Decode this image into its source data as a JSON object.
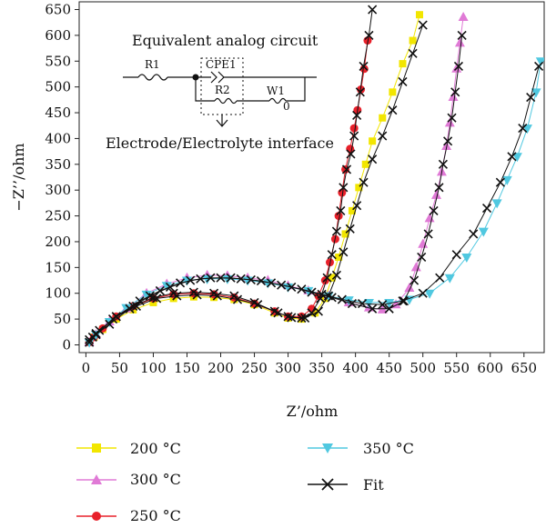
{
  "chart_data": {
    "type": "scatter",
    "title": "",
    "xlabel": "Z’/ohm",
    "ylabel": "−Z’’/ohm",
    "xlim": [
      -10,
      680
    ],
    "ylim": [
      -15,
      665
    ],
    "xticks": [
      0,
      50,
      100,
      150,
      200,
      250,
      300,
      350,
      400,
      450,
      500,
      550,
      600,
      650
    ],
    "yticks": [
      0,
      50,
      100,
      150,
      200,
      250,
      300,
      350,
      400,
      450,
      500,
      550,
      600,
      650
    ],
    "grid": false,
    "legend_position": "below",
    "inset": {
      "title": "Equivalent analog circuit",
      "caption": "Electrode/Electrolyte interface",
      "labels": [
        "R1",
        "CPE1",
        "R2",
        "W1",
        "0"
      ]
    },
    "series": [
      {
        "name": "200 °C",
        "color": "#f2e600",
        "marker": "square",
        "points": [
          [
            5,
            5
          ],
          [
            12,
            15
          ],
          [
            25,
            30
          ],
          [
            45,
            50
          ],
          [
            70,
            68
          ],
          [
            100,
            82
          ],
          [
            130,
            90
          ],
          [
            160,
            93
          ],
          [
            190,
            92
          ],
          [
            220,
            88
          ],
          [
            250,
            78
          ],
          [
            280,
            62
          ],
          [
            300,
            52
          ],
          [
            320,
            50
          ],
          [
            340,
            62
          ],
          [
            355,
            90
          ],
          [
            365,
            130
          ],
          [
            375,
            170
          ],
          [
            385,
            215
          ],
          [
            395,
            260
          ],
          [
            405,
            305
          ],
          [
            415,
            350
          ],
          [
            425,
            395
          ],
          [
            440,
            440
          ],
          [
            455,
            490
          ],
          [
            470,
            545
          ],
          [
            485,
            590
          ],
          [
            495,
            640
          ]
        ]
      },
      {
        "name": "300 °C",
        "color": "#e07ad6",
        "marker": "triangle",
        "points": [
          [
            5,
            5
          ],
          [
            15,
            20
          ],
          [
            35,
            45
          ],
          [
            60,
            70
          ],
          [
            90,
            100
          ],
          [
            120,
            118
          ],
          [
            150,
            130
          ],
          [
            180,
            135
          ],
          [
            210,
            134
          ],
          [
            240,
            130
          ],
          [
            270,
            125
          ],
          [
            300,
            115
          ],
          [
            330,
            105
          ],
          [
            360,
            95
          ],
          [
            390,
            82
          ],
          [
            420,
            72
          ],
          [
            440,
            68
          ],
          [
            460,
            78
          ],
          [
            480,
            110
          ],
          [
            490,
            150
          ],
          [
            500,
            195
          ],
          [
            510,
            245
          ],
          [
            520,
            290
          ],
          [
            528,
            335
          ],
          [
            535,
            385
          ],
          [
            540,
            430
          ],
          [
            545,
            480
          ],
          [
            550,
            535
          ],
          [
            555,
            585
          ],
          [
            560,
            635
          ]
        ]
      },
      {
        "name": "250 °C",
        "color": "#e8202a",
        "marker": "circle",
        "points": [
          [
            5,
            5
          ],
          [
            12,
            15
          ],
          [
            25,
            32
          ],
          [
            45,
            55
          ],
          [
            70,
            75
          ],
          [
            100,
            90
          ],
          [
            130,
            98
          ],
          [
            160,
            100
          ],
          [
            190,
            98
          ],
          [
            220,
            92
          ],
          [
            250,
            80
          ],
          [
            280,
            65
          ],
          [
            300,
            55
          ],
          [
            320,
            55
          ],
          [
            335,
            70
          ],
          [
            345,
            95
          ],
          [
            355,
            125
          ],
          [
            362,
            160
          ],
          [
            370,
            205
          ],
          [
            375,
            250
          ],
          [
            380,
            295
          ],
          [
            385,
            340
          ],
          [
            392,
            380
          ],
          [
            398,
            420
          ],
          [
            403,
            455
          ],
          [
            408,
            495
          ],
          [
            413,
            535
          ],
          [
            418,
            590
          ]
        ]
      },
      {
        "name": "350 °C",
        "color": "#50c8e0",
        "marker": "triangle-down",
        "points": [
          [
            5,
            5
          ],
          [
            15,
            20
          ],
          [
            35,
            45
          ],
          [
            60,
            72
          ],
          [
            90,
            98
          ],
          [
            120,
            115
          ],
          [
            150,
            125
          ],
          [
            180,
            128
          ],
          [
            210,
            128
          ],
          [
            240,
            125
          ],
          [
            270,
            120
          ],
          [
            300,
            112
          ],
          [
            330,
            105
          ],
          [
            360,
            95
          ],
          [
            390,
            87
          ],
          [
            420,
            82
          ],
          [
            450,
            82
          ],
          [
            480,
            88
          ],
          [
            510,
            100
          ],
          [
            540,
            130
          ],
          [
            565,
            170
          ],
          [
            590,
            220
          ],
          [
            610,
            275
          ],
          [
            625,
            320
          ],
          [
            640,
            365
          ],
          [
            655,
            420
          ],
          [
            668,
            490
          ],
          [
            675,
            550
          ]
        ]
      },
      {
        "name": "Fit",
        "color": "#111111",
        "marker": "x",
        "points": [
          [
            5,
            5
          ],
          [
            15,
            20
          ],
          [
            40,
            50
          ],
          [
            70,
            75
          ],
          [
            100,
            92
          ],
          [
            130,
            100
          ],
          [
            160,
            102
          ],
          [
            190,
            100
          ],
          [
            220,
            95
          ],
          [
            250,
            82
          ],
          [
            280,
            65
          ],
          [
            300,
            55
          ],
          [
            320,
            52
          ],
          [
            335,
            62
          ],
          [
            348,
            90
          ],
          [
            358,
            130
          ],
          [
            365,
            175
          ],
          [
            372,
            220
          ],
          [
            378,
            260
          ],
          [
            382,
            305
          ],
          [
            387,
            340
          ],
          [
            393,
            370
          ],
          [
            398,
            405
          ],
          [
            402,
            445
          ],
          [
            407,
            490
          ],
          [
            412,
            540
          ],
          [
            420,
            600
          ],
          [
            425,
            650
          ]
        ]
      },
      {
        "name": "",
        "color": "#111111",
        "marker": "x",
        "legend": false,
        "points": [
          [
            15,
            22
          ],
          [
            45,
            55
          ],
          [
            80,
            85
          ],
          [
            110,
            105
          ],
          [
            140,
            120
          ],
          [
            170,
            128
          ],
          [
            200,
            130
          ],
          [
            230,
            128
          ],
          [
            260,
            124
          ],
          [
            290,
            116
          ],
          [
            320,
            108
          ],
          [
            350,
            98
          ],
          [
            380,
            88
          ],
          [
            410,
            80
          ],
          [
            440,
            78
          ],
          [
            470,
            85
          ],
          [
            500,
            100
          ],
          [
            525,
            130
          ],
          [
            550,
            175
          ],
          [
            575,
            215
          ],
          [
            595,
            265
          ],
          [
            615,
            315
          ],
          [
            632,
            365
          ],
          [
            648,
            420
          ],
          [
            660,
            480
          ],
          [
            672,
            540
          ]
        ]
      },
      {
        "name": "",
        "color": "#111111",
        "marker": "x",
        "legend": false,
        "points": [
          [
            5,
            10
          ],
          [
            20,
            28
          ],
          [
            45,
            55
          ],
          [
            75,
            75
          ],
          [
            105,
            90
          ],
          [
            135,
            95
          ],
          [
            165,
            97
          ],
          [
            195,
            95
          ],
          [
            225,
            88
          ],
          [
            255,
            78
          ],
          [
            285,
            62
          ],
          [
            305,
            53
          ],
          [
            325,
            52
          ],
          [
            345,
            65
          ],
          [
            360,
            95
          ],
          [
            372,
            135
          ],
          [
            382,
            180
          ],
          [
            392,
            225
          ],
          [
            402,
            270
          ],
          [
            412,
            315
          ],
          [
            425,
            360
          ],
          [
            440,
            405
          ],
          [
            455,
            455
          ],
          [
            470,
            510
          ],
          [
            485,
            565
          ],
          [
            500,
            620
          ]
        ]
      },
      {
        "name": "",
        "color": "#111111",
        "marker": "x",
        "legend": false,
        "points": [
          [
            10,
            15
          ],
          [
            35,
            40
          ],
          [
            65,
            70
          ],
          [
            95,
            95
          ],
          [
            125,
            112
          ],
          [
            155,
            125
          ],
          [
            185,
            130
          ],
          [
            215,
            130
          ],
          [
            245,
            126
          ],
          [
            275,
            120
          ],
          [
            305,
            112
          ],
          [
            335,
            102
          ],
          [
            365,
            92
          ],
          [
            395,
            80
          ],
          [
            425,
            70
          ],
          [
            450,
            70
          ],
          [
            472,
            85
          ],
          [
            487,
            125
          ],
          [
            498,
            170
          ],
          [
            508,
            215
          ],
          [
            516,
            260
          ],
          [
            524,
            305
          ],
          [
            530,
            350
          ],
          [
            537,
            395
          ],
          [
            543,
            440
          ],
          [
            548,
            490
          ],
          [
            553,
            540
          ],
          [
            558,
            600
          ]
        ]
      }
    ]
  },
  "legend": {
    "items": [
      "200 °C",
      "300 °C",
      "250 °C",
      "350 °C",
      "Fit"
    ]
  }
}
